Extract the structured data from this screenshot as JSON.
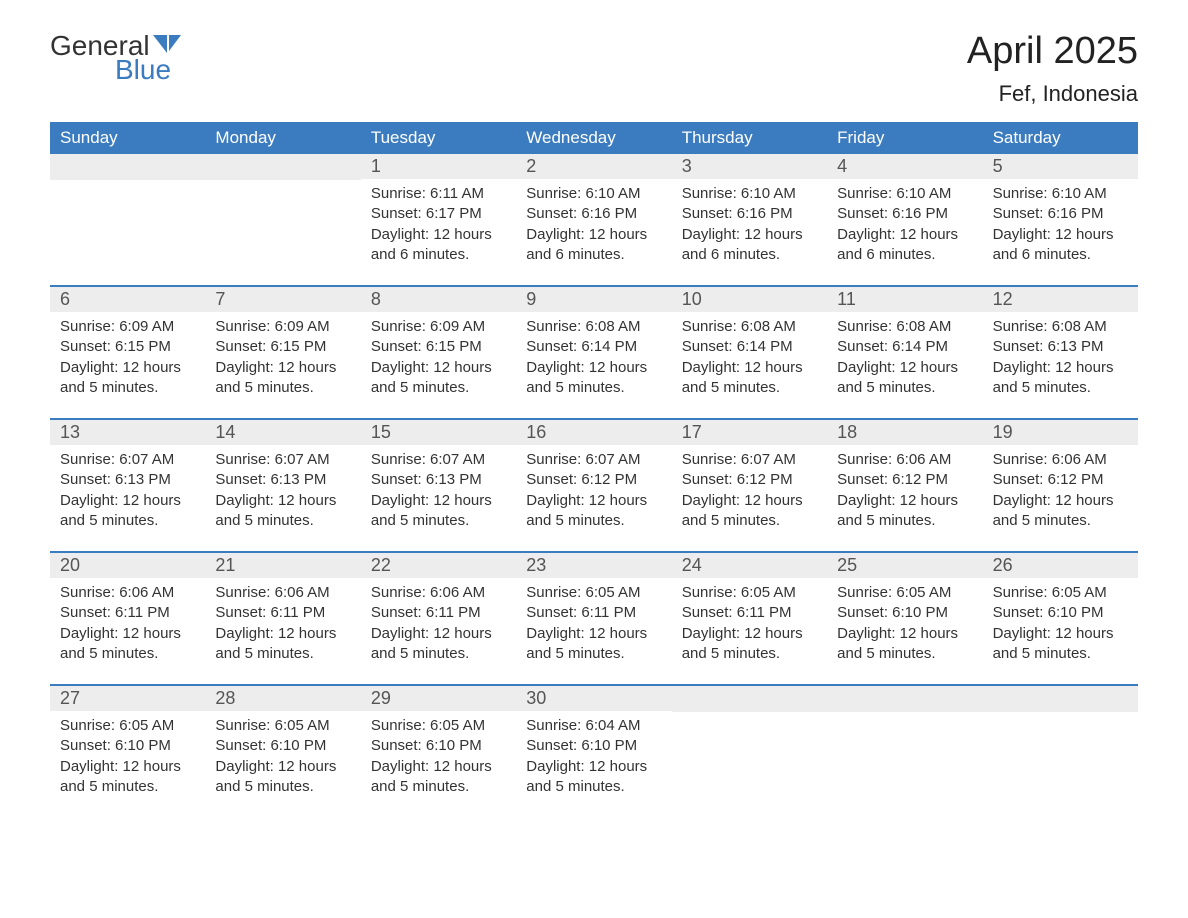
{
  "logo": {
    "line1": "General",
    "line2": "Blue",
    "icon_color": "#3b7bbf"
  },
  "header": {
    "month_title": "April 2025",
    "location": "Fef, Indonesia"
  },
  "colors": {
    "header_bg": "#3b7bbf",
    "header_text": "#ffffff",
    "day_number_bg": "#ededed",
    "text": "#333333",
    "row_border": "#3b7bbf"
  },
  "day_headers": [
    "Sunday",
    "Monday",
    "Tuesday",
    "Wednesday",
    "Thursday",
    "Friday",
    "Saturday"
  ],
  "weeks": [
    [
      {
        "day": "",
        "sunrise": "",
        "sunset": "",
        "daylight": ""
      },
      {
        "day": "",
        "sunrise": "",
        "sunset": "",
        "daylight": ""
      },
      {
        "day": "1",
        "sunrise": "Sunrise: 6:11 AM",
        "sunset": "Sunset: 6:17 PM",
        "daylight": "Daylight: 12 hours and 6 minutes."
      },
      {
        "day": "2",
        "sunrise": "Sunrise: 6:10 AM",
        "sunset": "Sunset: 6:16 PM",
        "daylight": "Daylight: 12 hours and 6 minutes."
      },
      {
        "day": "3",
        "sunrise": "Sunrise: 6:10 AM",
        "sunset": "Sunset: 6:16 PM",
        "daylight": "Daylight: 12 hours and 6 minutes."
      },
      {
        "day": "4",
        "sunrise": "Sunrise: 6:10 AM",
        "sunset": "Sunset: 6:16 PM",
        "daylight": "Daylight: 12 hours and 6 minutes."
      },
      {
        "day": "5",
        "sunrise": "Sunrise: 6:10 AM",
        "sunset": "Sunset: 6:16 PM",
        "daylight": "Daylight: 12 hours and 6 minutes."
      }
    ],
    [
      {
        "day": "6",
        "sunrise": "Sunrise: 6:09 AM",
        "sunset": "Sunset: 6:15 PM",
        "daylight": "Daylight: 12 hours and 5 minutes."
      },
      {
        "day": "7",
        "sunrise": "Sunrise: 6:09 AM",
        "sunset": "Sunset: 6:15 PM",
        "daylight": "Daylight: 12 hours and 5 minutes."
      },
      {
        "day": "8",
        "sunrise": "Sunrise: 6:09 AM",
        "sunset": "Sunset: 6:15 PM",
        "daylight": "Daylight: 12 hours and 5 minutes."
      },
      {
        "day": "9",
        "sunrise": "Sunrise: 6:08 AM",
        "sunset": "Sunset: 6:14 PM",
        "daylight": "Daylight: 12 hours and 5 minutes."
      },
      {
        "day": "10",
        "sunrise": "Sunrise: 6:08 AM",
        "sunset": "Sunset: 6:14 PM",
        "daylight": "Daylight: 12 hours and 5 minutes."
      },
      {
        "day": "11",
        "sunrise": "Sunrise: 6:08 AM",
        "sunset": "Sunset: 6:14 PM",
        "daylight": "Daylight: 12 hours and 5 minutes."
      },
      {
        "day": "12",
        "sunrise": "Sunrise: 6:08 AM",
        "sunset": "Sunset: 6:13 PM",
        "daylight": "Daylight: 12 hours and 5 minutes."
      }
    ],
    [
      {
        "day": "13",
        "sunrise": "Sunrise: 6:07 AM",
        "sunset": "Sunset: 6:13 PM",
        "daylight": "Daylight: 12 hours and 5 minutes."
      },
      {
        "day": "14",
        "sunrise": "Sunrise: 6:07 AM",
        "sunset": "Sunset: 6:13 PM",
        "daylight": "Daylight: 12 hours and 5 minutes."
      },
      {
        "day": "15",
        "sunrise": "Sunrise: 6:07 AM",
        "sunset": "Sunset: 6:13 PM",
        "daylight": "Daylight: 12 hours and 5 minutes."
      },
      {
        "day": "16",
        "sunrise": "Sunrise: 6:07 AM",
        "sunset": "Sunset: 6:12 PM",
        "daylight": "Daylight: 12 hours and 5 minutes."
      },
      {
        "day": "17",
        "sunrise": "Sunrise: 6:07 AM",
        "sunset": "Sunset: 6:12 PM",
        "daylight": "Daylight: 12 hours and 5 minutes."
      },
      {
        "day": "18",
        "sunrise": "Sunrise: 6:06 AM",
        "sunset": "Sunset: 6:12 PM",
        "daylight": "Daylight: 12 hours and 5 minutes."
      },
      {
        "day": "19",
        "sunrise": "Sunrise: 6:06 AM",
        "sunset": "Sunset: 6:12 PM",
        "daylight": "Daylight: 12 hours and 5 minutes."
      }
    ],
    [
      {
        "day": "20",
        "sunrise": "Sunrise: 6:06 AM",
        "sunset": "Sunset: 6:11 PM",
        "daylight": "Daylight: 12 hours and 5 minutes."
      },
      {
        "day": "21",
        "sunrise": "Sunrise: 6:06 AM",
        "sunset": "Sunset: 6:11 PM",
        "daylight": "Daylight: 12 hours and 5 minutes."
      },
      {
        "day": "22",
        "sunrise": "Sunrise: 6:06 AM",
        "sunset": "Sunset: 6:11 PM",
        "daylight": "Daylight: 12 hours and 5 minutes."
      },
      {
        "day": "23",
        "sunrise": "Sunrise: 6:05 AM",
        "sunset": "Sunset: 6:11 PM",
        "daylight": "Daylight: 12 hours and 5 minutes."
      },
      {
        "day": "24",
        "sunrise": "Sunrise: 6:05 AM",
        "sunset": "Sunset: 6:11 PM",
        "daylight": "Daylight: 12 hours and 5 minutes."
      },
      {
        "day": "25",
        "sunrise": "Sunrise: 6:05 AM",
        "sunset": "Sunset: 6:10 PM",
        "daylight": "Daylight: 12 hours and 5 minutes."
      },
      {
        "day": "26",
        "sunrise": "Sunrise: 6:05 AM",
        "sunset": "Sunset: 6:10 PM",
        "daylight": "Daylight: 12 hours and 5 minutes."
      }
    ],
    [
      {
        "day": "27",
        "sunrise": "Sunrise: 6:05 AM",
        "sunset": "Sunset: 6:10 PM",
        "daylight": "Daylight: 12 hours and 5 minutes."
      },
      {
        "day": "28",
        "sunrise": "Sunrise: 6:05 AM",
        "sunset": "Sunset: 6:10 PM",
        "daylight": "Daylight: 12 hours and 5 minutes."
      },
      {
        "day": "29",
        "sunrise": "Sunrise: 6:05 AM",
        "sunset": "Sunset: 6:10 PM",
        "daylight": "Daylight: 12 hours and 5 minutes."
      },
      {
        "day": "30",
        "sunrise": "Sunrise: 6:04 AM",
        "sunset": "Sunset: 6:10 PM",
        "daylight": "Daylight: 12 hours and 5 minutes."
      },
      {
        "day": "",
        "sunrise": "",
        "sunset": "",
        "daylight": ""
      },
      {
        "day": "",
        "sunrise": "",
        "sunset": "",
        "daylight": ""
      },
      {
        "day": "",
        "sunrise": "",
        "sunset": "",
        "daylight": ""
      }
    ]
  ]
}
